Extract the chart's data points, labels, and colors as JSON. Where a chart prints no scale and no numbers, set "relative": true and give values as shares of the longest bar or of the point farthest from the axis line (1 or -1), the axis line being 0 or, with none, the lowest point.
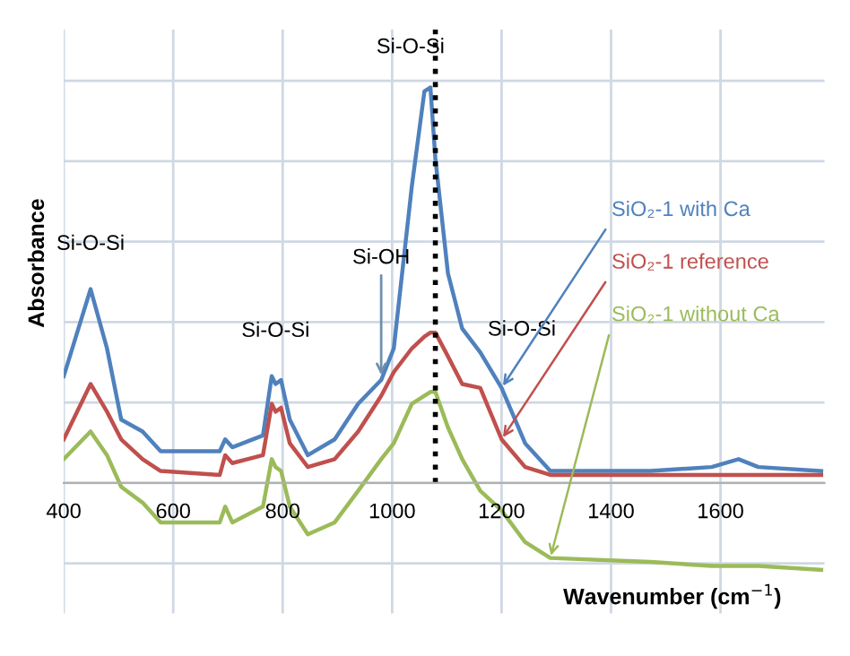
{
  "chart_data": {
    "type": "line",
    "relative": true,
    "xlabel": "Wavenumber (cm$^{−1}$)",
    "ylabel": "Absorbance",
    "x": [
      400,
      449,
      479,
      505,
      544,
      577,
      685,
      695,
      708,
      764,
      780,
      787,
      797,
      813,
      846,
      895,
      938,
      980,
      1003,
      1036,
      1059,
      1070,
      1079,
      1102,
      1128,
      1161,
      1200,
      1243,
      1289,
      1472,
      1584,
      1633,
      1669,
      1784
    ],
    "series": [
      {
        "name": "SiO₂-1 with Ca",
        "color": "#4f81bd",
        "values": [
          0.27,
          0.49,
          0.34,
          0.16,
          0.13,
          0.08,
          0.08,
          0.11,
          0.09,
          0.12,
          0.27,
          0.25,
          0.26,
          0.16,
          0.07,
          0.11,
          0.2,
          0.26,
          0.34,
          0.75,
          0.99,
          1.0,
          0.82,
          0.53,
          0.39,
          0.33,
          0.24,
          0.1,
          0.03,
          0.03,
          0.04,
          0.06,
          0.04,
          0.03
        ]
      },
      {
        "name": "SiO₂-1 reference",
        "color": "#c0504d",
        "values": [
          0.11,
          0.25,
          0.18,
          0.11,
          0.06,
          0.03,
          0.02,
          0.07,
          0.05,
          0.07,
          0.2,
          0.18,
          0.19,
          0.1,
          0.04,
          0.06,
          0.13,
          0.22,
          0.28,
          0.34,
          0.37,
          0.38,
          0.38,
          0.32,
          0.25,
          0.24,
          0.11,
          0.04,
          0.02,
          0.02,
          0.02,
          0.02,
          0.02,
          0.02
        ]
      },
      {
        "name": "SiO₂-1 without Ca",
        "color": "#9bbb59",
        "values": [
          0.06,
          0.13,
          0.07,
          -0.01,
          -0.05,
          -0.1,
          -0.1,
          -0.06,
          -0.1,
          -0.06,
          0.06,
          0.04,
          0.03,
          -0.06,
          -0.13,
          -0.1,
          -0.02,
          0.06,
          0.1,
          0.2,
          0.22,
          0.23,
          0.23,
          0.14,
          0.06,
          -0.02,
          -0.07,
          -0.15,
          -0.19,
          -0.2,
          -0.21,
          -0.21,
          -0.21,
          -0.22
        ]
      }
    ],
    "xlim": [
      400,
      1790
    ],
    "xticks": [
      400,
      600,
      800,
      1000,
      1200,
      1400,
      1600
    ],
    "tick_labels": "x",
    "grid": true,
    "legend": false,
    "line_style": "solid",
    "marker": "none",
    "ref_lines": [
      {
        "axis": "x",
        "value": 1079,
        "label": null,
        "color": "#000000",
        "line_style": "dotted"
      }
    ],
    "annotations": [
      {
        "text": "Si-O-Si",
        "x": 449,
        "y": 0.49
      },
      {
        "text": "Si-O-Si",
        "x": 787,
        "y": 0.27
      },
      {
        "text": "Si-OH",
        "x": 980,
        "y": 0.26
      },
      {
        "text": "Si-O-Si",
        "x": 1070,
        "y": 1.0
      },
      {
        "text": "Si-O-Si",
        "x": 1161,
        "y": 0.33
      }
    ]
  }
}
